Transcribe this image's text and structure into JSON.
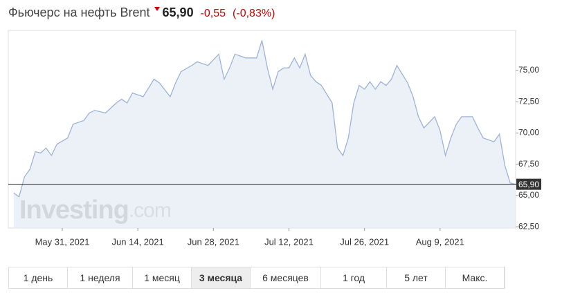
{
  "header": {
    "title": "Фьючерс на нефть Brent",
    "price": "65,90",
    "change": "-0,55",
    "change_pct": "(-0,83%)"
  },
  "chart_data": {
    "type": "area",
    "color": "#9db3d8",
    "fill": "#e9eef6",
    "x": [
      "2021-05-22",
      "2021-05-23",
      "2021-05-24",
      "2021-05-25",
      "2021-05-26",
      "2021-05-27",
      "2021-05-28",
      "2021-05-29",
      "2021-05-30",
      "2021-06-01",
      "2021-06-02",
      "2021-06-04",
      "2021-06-05",
      "2021-06-06",
      "2021-06-08",
      "2021-06-10",
      "2021-06-11",
      "2021-06-12",
      "2021-06-13",
      "2021-06-15",
      "2021-06-17",
      "2021-06-18",
      "2021-06-20",
      "2021-06-21",
      "2021-06-22",
      "2021-06-24",
      "2021-06-25",
      "2021-06-27",
      "2021-06-29",
      "2021-06-30",
      "2021-07-01",
      "2021-07-02",
      "2021-07-04",
      "2021-07-06",
      "2021-07-07",
      "2021-07-08",
      "2021-07-09",
      "2021-07-10",
      "2021-07-11",
      "2021-07-12",
      "2021-07-13",
      "2021-07-14",
      "2021-07-15",
      "2021-07-16",
      "2021-07-17",
      "2021-07-18",
      "2021-07-20",
      "2021-07-21",
      "2021-07-22",
      "2021-07-23",
      "2021-07-24",
      "2021-07-25",
      "2021-07-26",
      "2021-07-27",
      "2021-07-28",
      "2021-07-29",
      "2021-07-30",
      "2021-07-31",
      "2021-08-01",
      "2021-08-03",
      "2021-08-04",
      "2021-08-05",
      "2021-08-06",
      "2021-08-08",
      "2021-08-09",
      "2021-08-10",
      "2021-08-11",
      "2021-08-12",
      "2021-08-13",
      "2021-08-15",
      "2021-08-16",
      "2021-08-17",
      "2021-08-19",
      "2021-08-20",
      "2021-08-21",
      "2021-08-22",
      "2021-08-23"
    ],
    "values": [
      65.2,
      64.9,
      66.5,
      67.1,
      68.5,
      68.4,
      68.8,
      68.2,
      69.1,
      69.6,
      70.7,
      71.0,
      71.6,
      71.8,
      71.6,
      72.4,
      72.7,
      72.4,
      73.2,
      72.9,
      74.3,
      74.0,
      72.9,
      74.0,
      74.9,
      75.4,
      75.7,
      75.4,
      76.3,
      74.3,
      75.2,
      76.3,
      76.0,
      76.0,
      77.4,
      75.2,
      73.5,
      74.9,
      75.2,
      75.2,
      76.0,
      75.2,
      76.3,
      74.6,
      74.1,
      73.8,
      72.4,
      68.8,
      68.2,
      69.6,
      72.4,
      73.8,
      73.5,
      74.1,
      73.5,
      74.1,
      73.8,
      74.3,
      75.4,
      74.0,
      72.9,
      71.3,
      70.4,
      71.3,
      70.2,
      68.2,
      69.6,
      70.7,
      71.3,
      71.3,
      70.4,
      69.6,
      69.3,
      69.9,
      67.4,
      66.0,
      65.9
    ],
    "xlim": [
      "2021-05-21",
      "2021-08-23"
    ],
    "xticks": [
      {
        "value": "2021-05-31",
        "label": "May 31, 2021"
      },
      {
        "value": "2021-06-14",
        "label": "Jun 14, 2021"
      },
      {
        "value": "2021-06-28",
        "label": "Jun 28, 2021"
      },
      {
        "value": "2021-07-12",
        "label": "Jul 12, 2021"
      },
      {
        "value": "2021-07-26",
        "label": "Jul 26, 2021"
      },
      {
        "value": "2021-08-09",
        "label": "Aug 9, 2021"
      }
    ],
    "ylim": [
      62.4,
      78.2
    ],
    "yticks": [
      {
        "value": 62.5,
        "label": "62,50"
      },
      {
        "value": 65,
        "label": "65,00"
      },
      {
        "value": 67.5,
        "label": "67,50"
      },
      {
        "value": 70,
        "label": "70,00"
      },
      {
        "value": 72.5,
        "label": "72,50"
      },
      {
        "value": 75,
        "label": "75,00"
      }
    ],
    "price_line": {
      "value": 65.9,
      "label": "65,90"
    },
    "watermark": {
      "brand": "Investing",
      "suffix": ".com"
    }
  },
  "range_buttons": {
    "labels": [
      "1 день",
      "1 неделя",
      "1 месяц",
      "3 месяца",
      "6 месяцев",
      "1 год",
      "5 лет",
      "Макс."
    ],
    "active": 3
  }
}
